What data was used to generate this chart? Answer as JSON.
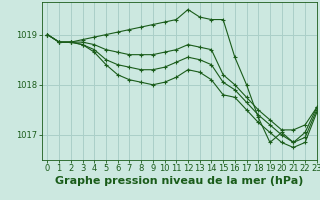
{
  "background_color": "#cce8e0",
  "grid_color": "#aacfc8",
  "line_color": "#1a5c1a",
  "marker_color": "#1a5c1a",
  "title": "Graphe pression niveau de la mer (hPa)",
  "xlim": [
    -0.5,
    23
  ],
  "ylim": [
    1016.5,
    1019.65
  ],
  "yticks": [
    1017,
    1018,
    1019
  ],
  "xticks": [
    0,
    1,
    2,
    3,
    4,
    5,
    6,
    7,
    8,
    9,
    10,
    11,
    12,
    13,
    14,
    15,
    16,
    17,
    18,
    19,
    20,
    21,
    22,
    23
  ],
  "series": [
    [
      1019.0,
      1018.85,
      1018.85,
      1018.9,
      1018.95,
      1019.0,
      1019.05,
      1019.1,
      1019.15,
      1019.2,
      1019.25,
      1019.3,
      1019.5,
      1019.35,
      1019.3,
      1019.3,
      1018.55,
      1018.0,
      1017.35,
      1016.85,
      1017.05,
      1016.85,
      1017.05,
      1017.55
    ],
    [
      1019.0,
      1018.85,
      1018.85,
      1018.85,
      1018.8,
      1018.7,
      1018.65,
      1018.6,
      1018.6,
      1018.6,
      1018.65,
      1018.7,
      1018.8,
      1018.75,
      1018.7,
      1018.2,
      1018.0,
      1017.75,
      1017.5,
      1017.3,
      1017.1,
      1017.1,
      1017.2,
      1017.55
    ],
    [
      1019.0,
      1018.85,
      1018.85,
      1018.8,
      1018.7,
      1018.5,
      1018.4,
      1018.35,
      1018.3,
      1018.3,
      1018.35,
      1018.45,
      1018.55,
      1018.5,
      1018.4,
      1018.05,
      1017.9,
      1017.65,
      1017.4,
      1017.2,
      1017.0,
      1016.85,
      1016.95,
      1017.5
    ],
    [
      1019.0,
      1018.85,
      1018.85,
      1018.8,
      1018.65,
      1018.4,
      1018.2,
      1018.1,
      1018.05,
      1018.0,
      1018.05,
      1018.15,
      1018.3,
      1018.25,
      1018.1,
      1017.8,
      1017.75,
      1017.5,
      1017.25,
      1017.05,
      1016.85,
      1016.75,
      1016.85,
      1017.45
    ]
  ],
  "title_fontsize": 8,
  "tick_fontsize": 6,
  "title_bold": true
}
